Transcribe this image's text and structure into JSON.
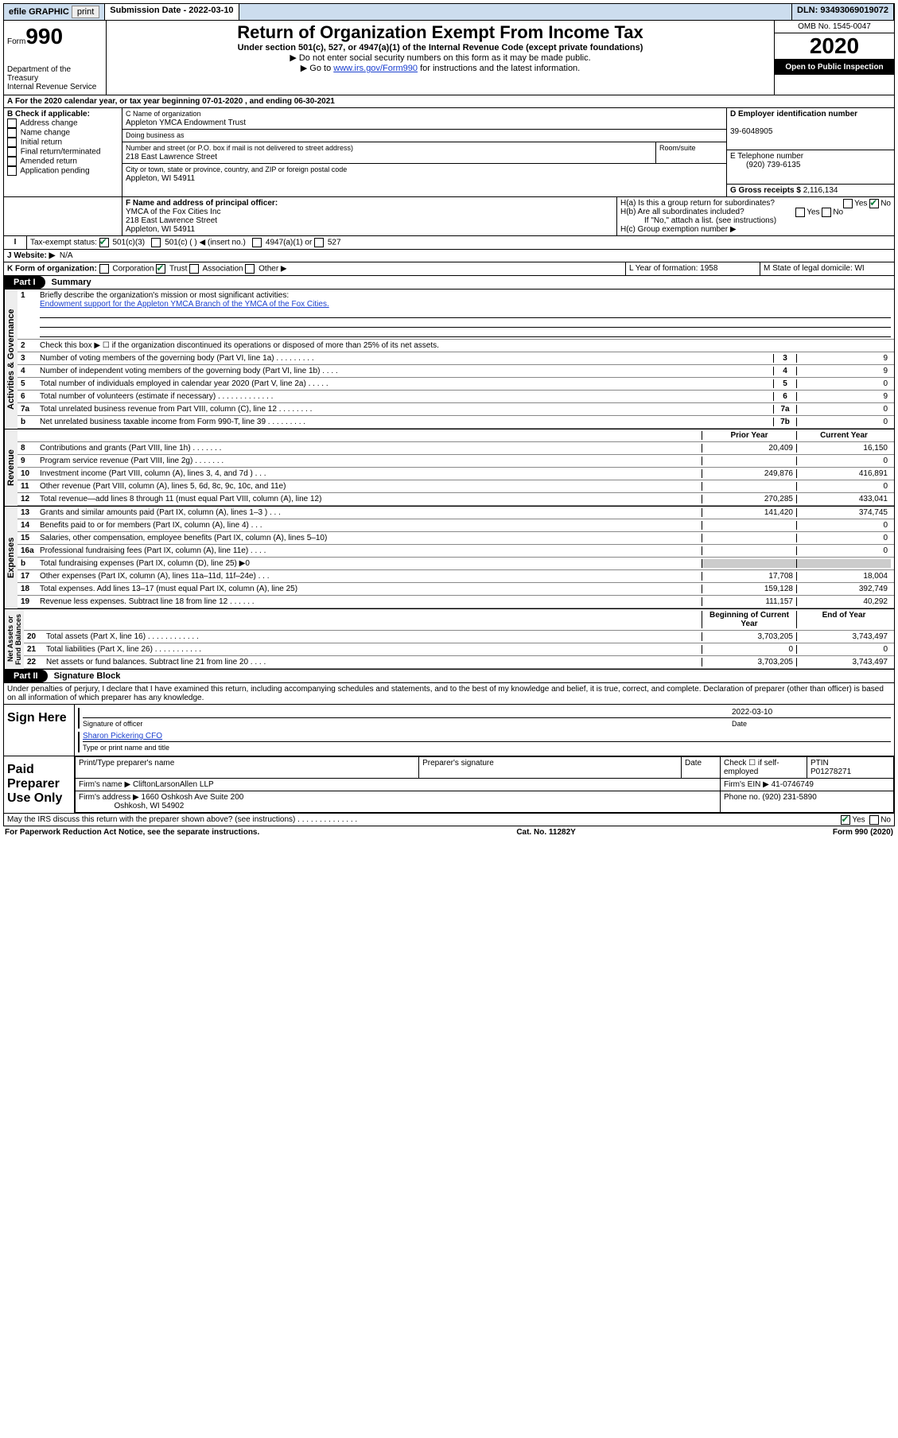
{
  "topbar": {
    "efile": "efile GRAPHIC",
    "print": "print",
    "submission": "Submission Date - 2022-03-10",
    "dln_label": "DLN:",
    "dln": "93493069019072"
  },
  "header": {
    "form_word": "Form",
    "form_no": "990",
    "dept": "Department of the Treasury",
    "irs": "Internal Revenue Service",
    "title": "Return of Organization Exempt From Income Tax",
    "subtitle": "Under section 501(c), 527, or 4947(a)(1) of the Internal Revenue Code (except private foundations)",
    "note1": "▶ Do not enter social security numbers on this form as it may be made public.",
    "note2_pre": "▶ Go to ",
    "note2_link": "www.irs.gov/Form990",
    "note2_post": " for instructions and the latest information.",
    "omb": "OMB No. 1545-0047",
    "year": "2020",
    "open": "Open to Public Inspection"
  },
  "periodA": "For the 2020 calendar year, or tax year beginning 07-01-2020   , and ending 06-30-2021",
  "boxB": {
    "label": "B Check if applicable:",
    "addr": "Address change",
    "name": "Name change",
    "initial": "Initial return",
    "final": "Final return/terminated",
    "amended": "Amended return",
    "app": "Application pending"
  },
  "boxC": {
    "label": "C Name of organization",
    "org": "Appleton YMCA Endowment Trust",
    "dba": "Doing business as",
    "street_label": "Number and street (or P.O. box if mail is not delivered to street address)",
    "room": "Room/suite",
    "street": "218 East Lawrence Street",
    "city_label": "City or town, state or province, country, and ZIP or foreign postal code",
    "city": "Appleton, WI  54911"
  },
  "boxD": {
    "label": "D Employer identification number",
    "ein": "39-6048905"
  },
  "boxE": {
    "label": "E Telephone number",
    "phone": "(920) 739-6135"
  },
  "boxG": {
    "label": "G Gross receipts $",
    "amount": "2,116,134"
  },
  "boxF": {
    "label": "F  Name and address of principal officer:",
    "name": "YMCA of the Fox Cities Inc",
    "street": "218 East Lawrence Street",
    "city": "Appleton, WI  54911"
  },
  "boxH": {
    "a": "H(a)  Is this a group return for subordinates?",
    "b": "H(b)  Are all subordinates included?",
    "b_note": "If \"No,\" attach a list. (see instructions)",
    "c": "H(c)  Group exemption number ▶"
  },
  "boxI": {
    "label": "Tax-exempt status:",
    "c3": "501(c)(3)",
    "c": "501(c) (  ) ◀ (insert no.)",
    "a1": "4947(a)(1) or",
    "s527": "527"
  },
  "boxJ": {
    "label": "J    Website: ▶",
    "val": "N/A"
  },
  "boxK": {
    "label": "K Form of organization:",
    "corp": "Corporation",
    "trust": "Trust",
    "assoc": "Association",
    "other": "Other ▶"
  },
  "boxL": "L Year of formation: 1958",
  "boxM": "M State of legal domicile: WI",
  "part1": {
    "tag": "Part I",
    "title": "Summary",
    "q1": "Briefly describe the organization's mission or most significant activities:",
    "mission": "Endowment support for the Appleton YMCA Branch of the YMCA of the Fox Cities.",
    "q2": "Check this box ▶ ☐  if the organization discontinued its operations or disposed of more than 25% of its net assets.",
    "lines_gov": [
      {
        "n": "3",
        "d": "Number of voting members of the governing body (Part VI, line 1a)  .  .  .  .  .  .  .  .  .",
        "box": "3",
        "v": "9"
      },
      {
        "n": "4",
        "d": "Number of independent voting members of the governing body (Part VI, line 1b)  .  .  .  .",
        "box": "4",
        "v": "9"
      },
      {
        "n": "5",
        "d": "Total number of individuals employed in calendar year 2020 (Part V, line 2a)  .  .  .  .  .",
        "box": "5",
        "v": "0"
      },
      {
        "n": "6",
        "d": "Total number of volunteers (estimate if necessary)  .  .  .  .  .  .  .  .  .  .  .  .  .",
        "box": "6",
        "v": "9"
      },
      {
        "n": "7a",
        "d": "Total unrelated business revenue from Part VIII, column (C), line 12  .  .  .  .  .  .  .  .",
        "box": "7a",
        "v": "0"
      },
      {
        "n": "b",
        "d": "Net unrelated business taxable income from Form 990-T, line 39  .  .  .  .  .  .  .  .  .",
        "box": "7b",
        "v": "0"
      }
    ],
    "col_prior": "Prior Year",
    "col_current": "Current Year",
    "lines_rev": [
      {
        "n": "8",
        "d": "Contributions and grants (Part VIII, line 1h)  .  .  .  .  .  .  .",
        "p": "20,409",
        "c": "16,150"
      },
      {
        "n": "9",
        "d": "Program service revenue (Part VIII, line 2g)  .  .  .  .  .  .  .",
        "p": "",
        "c": "0"
      },
      {
        "n": "10",
        "d": "Investment income (Part VIII, column (A), lines 3, 4, and 7d )  .  .  .",
        "p": "249,876",
        "c": "416,891"
      },
      {
        "n": "11",
        "d": "Other revenue (Part VIII, column (A), lines 5, 6d, 8c, 9c, 10c, and 11e)",
        "p": "",
        "c": "0"
      },
      {
        "n": "12",
        "d": "Total revenue—add lines 8 through 11 (must equal Part VIII, column (A), line 12)",
        "p": "270,285",
        "c": "433,041"
      }
    ],
    "lines_exp": [
      {
        "n": "13",
        "d": "Grants and similar amounts paid (Part IX, column (A), lines 1–3 )  .  .  .",
        "p": "141,420",
        "c": "374,745"
      },
      {
        "n": "14",
        "d": "Benefits paid to or for members (Part IX, column (A), line 4)  .  .  .",
        "p": "",
        "c": "0"
      },
      {
        "n": "15",
        "d": "Salaries, other compensation, employee benefits (Part IX, column (A), lines 5–10)",
        "p": "",
        "c": "0"
      },
      {
        "n": "16a",
        "d": "Professional fundraising fees (Part IX, column (A), line 11e)  .  .  .  .",
        "p": "",
        "c": "0"
      },
      {
        "n": "b",
        "d": "Total fundraising expenses (Part IX, column (D), line 25) ▶0",
        "p": "SHADE",
        "c": "SHADE"
      },
      {
        "n": "17",
        "d": "Other expenses (Part IX, column (A), lines 11a–11d, 11f–24e)  .  .  .",
        "p": "17,708",
        "c": "18,004"
      },
      {
        "n": "18",
        "d": "Total expenses. Add lines 13–17 (must equal Part IX, column (A), line 25)",
        "p": "159,128",
        "c": "392,749"
      },
      {
        "n": "19",
        "d": "Revenue less expenses. Subtract line 18 from line 12  .  .  .  .  .  .",
        "p": "111,157",
        "c": "40,292"
      }
    ],
    "col_begin": "Beginning of Current Year",
    "col_end": "End of Year",
    "lines_net": [
      {
        "n": "20",
        "d": "Total assets (Part X, line 16)  .  .  .  .  .  .  .  .  .  .  .  .",
        "p": "3,703,205",
        "c": "3,743,497"
      },
      {
        "n": "21",
        "d": "Total liabilities (Part X, line 26)  .  .  .  .  .  .  .  .  .  .  .",
        "p": "0",
        "c": "0"
      },
      {
        "n": "22",
        "d": "Net assets or fund balances. Subtract line 21 from line 20  .  .  .  .",
        "p": "3,703,205",
        "c": "3,743,497"
      }
    ]
  },
  "part2": {
    "tag": "Part II",
    "title": "Signature Block",
    "perjury": "Under penalties of perjury, I declare that I have examined this return, including accompanying schedules and statements, and to the best of my knowledge and belief, it is true, correct, and complete. Declaration of preparer (other than officer) is based on all information of which preparer has any knowledge.",
    "sign_here": "Sign Here",
    "sig_officer": "Signature of officer",
    "date_label": "Date",
    "sig_date": "2022-03-10",
    "officer_name": "Sharon Pickering CFO",
    "type_name": "Type or print name and title",
    "paid": "Paid Preparer Use Only",
    "prep_name_label": "Print/Type preparer's name",
    "prep_sig_label": "Preparer's signature",
    "check_self": "Check ☐ if self-employed",
    "ptin_label": "PTIN",
    "ptin": "P01278271",
    "firm_name_label": "Firm's name      ▶",
    "firm_name": "CliftonLarsonAllen LLP",
    "firm_ein_label": "Firm's EIN ▶",
    "firm_ein": "41-0746749",
    "firm_addr_label": "Firm's address ▶",
    "firm_addr1": "1660 Oshkosh Ave Suite 200",
    "firm_addr2": "Oshkosh, WI  54902",
    "phone_label": "Phone no.",
    "phone": "(920) 231-5890",
    "discuss": "May the IRS discuss this return with the preparer shown above? (see instructions)  .  .  .  .  .  .  .  .  .  .  .  .  .  ."
  },
  "footer": {
    "left": "For Paperwork Reduction Act Notice, see the separate instructions.",
    "mid": "Cat. No. 11282Y",
    "right": "Form 990 (2020)"
  }
}
